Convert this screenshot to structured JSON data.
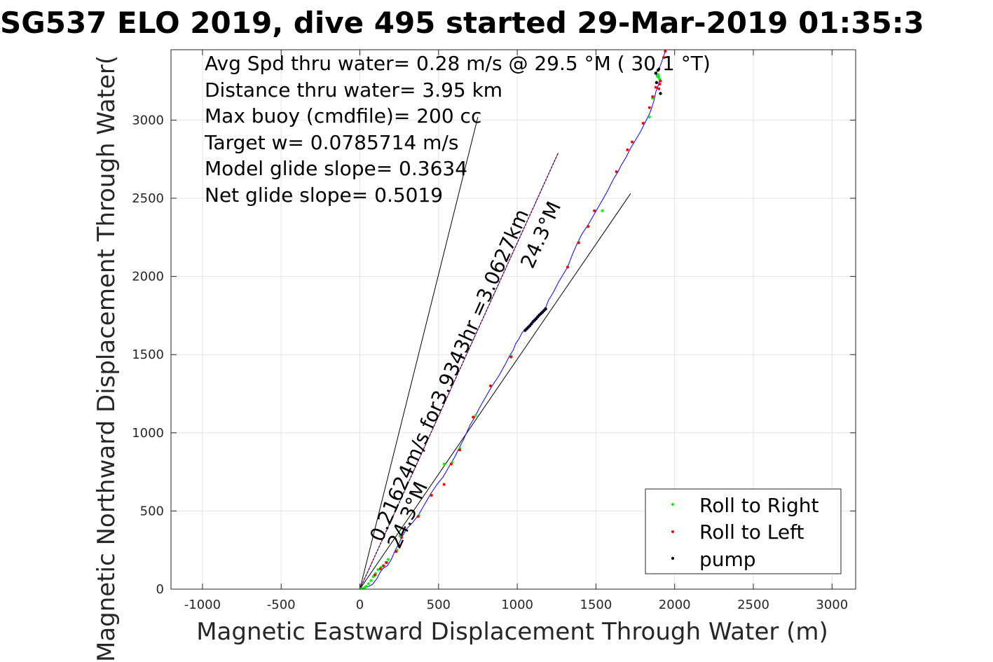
{
  "chart_data": {
    "type": "line",
    "title": "SG537 ELO 2019, dive 495 started 29-Mar-2019 01:35:3",
    "xlabel": "Magnetic Eastward Displacement Through Water (m)",
    "ylabel": "Magnetic Northward Displacement Through Water(",
    "xlim": [
      -1200,
      3150
    ],
    "ylim": [
      0,
      3450
    ],
    "xticks": [
      -1000,
      -500,
      0,
      500,
      1000,
      1500,
      2000,
      2500,
      3000
    ],
    "xtick_labels": [
      "-1000",
      "-500",
      "0",
      "500",
      "1000",
      "1500",
      "2000",
      "2500",
      "3000"
    ],
    "yticks": [
      0,
      500,
      1000,
      1500,
      2000,
      2500,
      3000
    ],
    "ytick_labels": [
      "0",
      "500",
      "1000",
      "1500",
      "2000",
      "2500",
      "3000"
    ],
    "grid": true,
    "annotations": [
      "Avg Spd thru water=  0.28 m/s @  29.5 °M ( 30.1 °T)",
      "Distance thru water=  3.95 km",
      "Max buoy (cmdfile)= 200 cc",
      "Target w= 0.0785714 m/s",
      "Model glide slope= 0.3634",
      "Net glide slope= 0.5019"
    ],
    "rotated_annotations": [
      "0.21624m/s for3.9343hr =3.0627km",
      "24.3°M",
      "24.3°M"
    ],
    "reference_lines": [
      {
        "color": "#000000",
        "x": [
          0,
          750
        ],
        "y": [
          0,
          3020
        ]
      },
      {
        "color": "#000000",
        "x": [
          0,
          1720
        ],
        "y": [
          0,
          2530
        ]
      },
      {
        "color": "#cc00cc",
        "x": [
          0,
          1260
        ],
        "y": [
          0,
          2790
        ]
      }
    ],
    "track": {
      "color": "#0000ff",
      "x": [
        0,
        40,
        80,
        110,
        130,
        150,
        175,
        200,
        225,
        245,
        270,
        300,
        330,
        370,
        410,
        450,
        490,
        530,
        570,
        600,
        630,
        660,
        700,
        730,
        760,
        800,
        840,
        880,
        920,
        950,
        975,
        990,
        1010,
        1030,
        1050,
        1100,
        1150,
        1180,
        1200,
        1230,
        1260,
        1290,
        1320,
        1350,
        1380,
        1410,
        1450,
        1490,
        1530,
        1570,
        1610,
        1640,
        1660,
        1690,
        1720,
        1750,
        1780,
        1810,
        1840,
        1855,
        1870,
        1880,
        1895,
        1905,
        1900,
        1885,
        1880,
        1900,
        1910,
        1920,
        1930,
        1945
      ],
      "y": [
        0,
        10,
        30,
        70,
        110,
        135,
        150,
        190,
        250,
        285,
        340,
        390,
        420,
        470,
        540,
        610,
        670,
        720,
        790,
        840,
        900,
        960,
        1050,
        1100,
        1160,
        1230,
        1300,
        1360,
        1430,
        1490,
        1530,
        1570,
        1600,
        1640,
        1660,
        1715,
        1765,
        1800,
        1850,
        1900,
        1960,
        2010,
        2060,
        2140,
        2210,
        2270,
        2330,
        2400,
        2470,
        2540,
        2620,
        2670,
        2710,
        2760,
        2820,
        2870,
        2920,
        2980,
        3040,
        3080,
        3130,
        3180,
        3220,
        3260,
        3290,
        3280,
        3300,
        3330,
        3350,
        3380,
        3410,
        3450
      ]
    },
    "series": [
      {
        "name": "Roll to Right",
        "color": "#00ff00",
        "x": [
          5,
          12,
          20,
          30,
          40,
          55,
          70,
          85,
          100,
          115,
          135,
          150,
          165,
          180,
          235,
          255,
          375,
          455,
          535,
          585,
          635,
          720,
          735,
          830,
          960,
          1320,
          1390,
          1450,
          1540,
          1800,
          1840,
          1860,
          1890,
          1900,
          1905,
          1895
        ],
        "y": [
          2,
          3,
          5,
          10,
          18,
          35,
          55,
          80,
          100,
          125,
          140,
          150,
          170,
          190,
          250,
          340,
          470,
          600,
          800,
          810,
          900,
          1100,
          1110,
          1300,
          1490,
          2060,
          2220,
          2320,
          2420,
          2980,
          3020,
          3140,
          3280,
          3270,
          3260,
          3290
        ]
      },
      {
        "name": "Roll to Left",
        "color": "#ff0000",
        "x": [
          95,
          130,
          150,
          170,
          230,
          250,
          265,
          370,
          455,
          535,
          580,
          635,
          720,
          830,
          960,
          1180,
          1320,
          1390,
          1450,
          1490,
          1630,
          1700,
          1730,
          1800,
          1840,
          1860,
          1880,
          1900,
          1905,
          1910,
          1930,
          1940
        ],
        "y": [
          90,
          130,
          150,
          170,
          240,
          280,
          330,
          465,
          600,
          670,
          800,
          890,
          1100,
          1300,
          1485,
          1795,
          2060,
          2215,
          2320,
          2420,
          2670,
          2810,
          2860,
          2980,
          3080,
          3150,
          3210,
          3200,
          3230,
          3250,
          3400,
          3440
        ]
      },
      {
        "name": "pump",
        "color": "#000000",
        "x": [
          1050,
          1060,
          1070,
          1080,
          1090,
          1100,
          1110,
          1120,
          1130,
          1140,
          1150,
          1160,
          1170,
          1180,
          1880,
          1895,
          1910,
          1885
        ],
        "y": [
          1655,
          1665,
          1675,
          1685,
          1697,
          1710,
          1720,
          1730,
          1742,
          1753,
          1762,
          1772,
          1782,
          1792,
          3300,
          3320,
          3170,
          3240
        ]
      }
    ],
    "legend": {
      "position": "bottom-right",
      "entries": [
        "Roll to Right",
        "Roll to Left",
        "pump"
      ]
    }
  }
}
